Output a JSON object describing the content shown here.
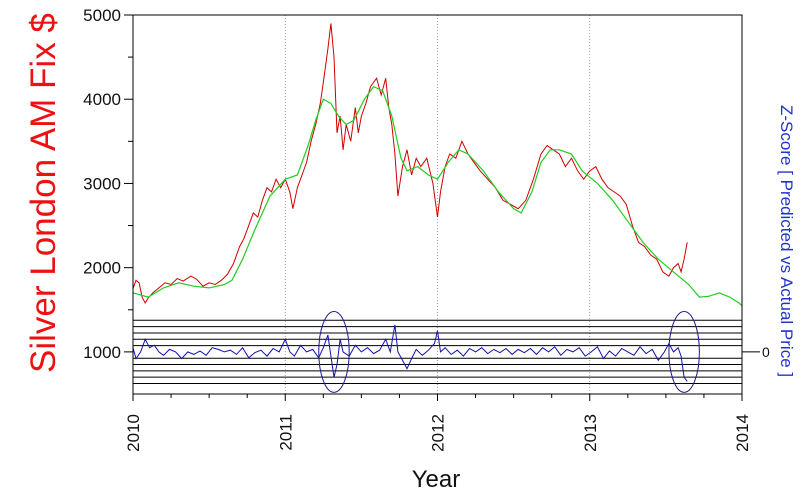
{
  "chart_data": {
    "type": "line",
    "title": "",
    "xlabel": "Year",
    "ylabel": "Silver London AM Fix $",
    "ylabel_right": "Z-Score [ Predicted vs Actual Price ]",
    "xlim": [
      2010,
      2014
    ],
    "ylim": [
      500,
      5000
    ],
    "xticks": [
      2010,
      2011,
      2012,
      2013,
      2014
    ],
    "yticks": [
      1000,
      2000,
      3000,
      4000,
      5000
    ],
    "right_ytick_label": "0",
    "grid": "vertical dotted at years",
    "colors": {
      "actual": "#d00000",
      "predicted": "#22cc22",
      "zscore": "#1111aa",
      "circles": "#1a1a8c",
      "ylabel": "#ee1111",
      "ylabel_right": "#2233cc"
    },
    "series": [
      {
        "key": "actual",
        "points": [
          [
            2010.0,
            1750
          ],
          [
            2010.02,
            1850
          ],
          [
            2010.04,
            1820
          ],
          [
            2010.06,
            1650
          ],
          [
            2010.08,
            1580
          ],
          [
            2010.1,
            1640
          ],
          [
            2010.13,
            1700
          ],
          [
            2010.17,
            1760
          ],
          [
            2010.21,
            1820
          ],
          [
            2010.25,
            1800
          ],
          [
            2010.29,
            1870
          ],
          [
            2010.33,
            1840
          ],
          [
            2010.38,
            1900
          ],
          [
            2010.42,
            1860
          ],
          [
            2010.46,
            1780
          ],
          [
            2010.5,
            1820
          ],
          [
            2010.54,
            1800
          ],
          [
            2010.58,
            1850
          ],
          [
            2010.62,
            1920
          ],
          [
            2010.66,
            2050
          ],
          [
            2010.7,
            2250
          ],
          [
            2010.73,
            2350
          ],
          [
            2010.76,
            2500
          ],
          [
            2010.79,
            2650
          ],
          [
            2010.82,
            2600
          ],
          [
            2010.85,
            2800
          ],
          [
            2010.88,
            2950
          ],
          [
            2010.91,
            2900
          ],
          [
            2010.94,
            3050
          ],
          [
            2010.97,
            2950
          ],
          [
            2011.0,
            3050
          ],
          [
            2011.03,
            2900
          ],
          [
            2011.05,
            2700
          ],
          [
            2011.08,
            2950
          ],
          [
            2011.11,
            3100
          ],
          [
            2011.14,
            3250
          ],
          [
            2011.17,
            3500
          ],
          [
            2011.2,
            3700
          ],
          [
            2011.23,
            3950
          ],
          [
            2011.25,
            4200
          ],
          [
            2011.28,
            4600
          ],
          [
            2011.3,
            4900
          ],
          [
            2011.32,
            4500
          ],
          [
            2011.34,
            3600
          ],
          [
            2011.36,
            3800
          ],
          [
            2011.38,
            3400
          ],
          [
            2011.4,
            3700
          ],
          [
            2011.43,
            3500
          ],
          [
            2011.46,
            3900
          ],
          [
            2011.48,
            3600
          ],
          [
            2011.5,
            3800
          ],
          [
            2011.53,
            3950
          ],
          [
            2011.56,
            4150
          ],
          [
            2011.6,
            4250
          ],
          [
            2011.63,
            4050
          ],
          [
            2011.66,
            4250
          ],
          [
            2011.68,
            3900
          ],
          [
            2011.7,
            3700
          ],
          [
            2011.72,
            3350
          ],
          [
            2011.74,
            2850
          ],
          [
            2011.77,
            3200
          ],
          [
            2011.8,
            3400
          ],
          [
            2011.83,
            3100
          ],
          [
            2011.86,
            3300
          ],
          [
            2011.89,
            3200
          ],
          [
            2011.93,
            3300
          ],
          [
            2011.97,
            3000
          ],
          [
            2012.0,
            2600
          ],
          [
            2012.02,
            2900
          ],
          [
            2012.05,
            3200
          ],
          [
            2012.08,
            3350
          ],
          [
            2012.12,
            3300
          ],
          [
            2012.16,
            3500
          ],
          [
            2012.2,
            3350
          ],
          [
            2012.24,
            3250
          ],
          [
            2012.28,
            3150
          ],
          [
            2012.33,
            3050
          ],
          [
            2012.38,
            2950
          ],
          [
            2012.43,
            2800
          ],
          [
            2012.48,
            2750
          ],
          [
            2012.53,
            2700
          ],
          [
            2012.58,
            2800
          ],
          [
            2012.63,
            3050
          ],
          [
            2012.68,
            3350
          ],
          [
            2012.72,
            3450
          ],
          [
            2012.76,
            3400
          ],
          [
            2012.8,
            3350
          ],
          [
            2012.84,
            3200
          ],
          [
            2012.88,
            3300
          ],
          [
            2012.92,
            3150
          ],
          [
            2012.96,
            3050
          ],
          [
            2013.0,
            3150
          ],
          [
            2013.04,
            3200
          ],
          [
            2013.08,
            3050
          ],
          [
            2013.12,
            2950
          ],
          [
            2013.16,
            2900
          ],
          [
            2013.2,
            2850
          ],
          [
            2013.24,
            2750
          ],
          [
            2013.28,
            2500
          ],
          [
            2013.32,
            2300
          ],
          [
            2013.36,
            2250
          ],
          [
            2013.4,
            2150
          ],
          [
            2013.44,
            2100
          ],
          [
            2013.48,
            1950
          ],
          [
            2013.52,
            1900
          ],
          [
            2013.55,
            2000
          ],
          [
            2013.58,
            2050
          ],
          [
            2013.6,
            1950
          ],
          [
            2013.62,
            2100
          ],
          [
            2013.64,
            2300
          ]
        ]
      },
      {
        "key": "predicted",
        "points": [
          [
            2010.0,
            1700
          ],
          [
            2010.1,
            1650
          ],
          [
            2010.2,
            1760
          ],
          [
            2010.3,
            1820
          ],
          [
            2010.4,
            1780
          ],
          [
            2010.5,
            1760
          ],
          [
            2010.6,
            1800
          ],
          [
            2010.65,
            1850
          ],
          [
            2010.72,
            2100
          ],
          [
            2010.8,
            2450
          ],
          [
            2010.9,
            2850
          ],
          [
            2011.0,
            3050
          ],
          [
            2011.08,
            3100
          ],
          [
            2011.15,
            3450
          ],
          [
            2011.2,
            3750
          ],
          [
            2011.25,
            4000
          ],
          [
            2011.3,
            3950
          ],
          [
            2011.35,
            3800
          ],
          [
            2011.4,
            3700
          ],
          [
            2011.45,
            3750
          ],
          [
            2011.52,
            4000
          ],
          [
            2011.58,
            4150
          ],
          [
            2011.64,
            4100
          ],
          [
            2011.7,
            3800
          ],
          [
            2011.76,
            3300
          ],
          [
            2011.8,
            3150
          ],
          [
            2011.87,
            3200
          ],
          [
            2011.94,
            3100
          ],
          [
            2012.0,
            3050
          ],
          [
            2012.07,
            3250
          ],
          [
            2012.14,
            3400
          ],
          [
            2012.2,
            3350
          ],
          [
            2012.3,
            3150
          ],
          [
            2012.4,
            2900
          ],
          [
            2012.5,
            2700
          ],
          [
            2012.55,
            2650
          ],
          [
            2012.62,
            2900
          ],
          [
            2012.68,
            3250
          ],
          [
            2012.74,
            3400
          ],
          [
            2012.8,
            3400
          ],
          [
            2012.88,
            3350
          ],
          [
            2012.95,
            3150
          ],
          [
            2013.05,
            3000
          ],
          [
            2013.15,
            2800
          ],
          [
            2013.25,
            2550
          ],
          [
            2013.35,
            2300
          ],
          [
            2013.45,
            2100
          ],
          [
            2013.55,
            1950
          ],
          [
            2013.65,
            1800
          ],
          [
            2013.72,
            1650
          ],
          [
            2013.78,
            1660
          ],
          [
            2013.85,
            1700
          ],
          [
            2013.92,
            1650
          ],
          [
            2013.98,
            1580
          ],
          [
            2014.0,
            1550
          ]
        ]
      },
      {
        "key": "zscore",
        "baseline": 1000,
        "points": [
          [
            2010.0,
            1050
          ],
          [
            2010.02,
            920
          ],
          [
            2010.05,
            1000
          ],
          [
            2010.08,
            1150
          ],
          [
            2010.11,
            1050
          ],
          [
            2010.14,
            1080
          ],
          [
            2010.17,
            1000
          ],
          [
            2010.2,
            960
          ],
          [
            2010.24,
            1030
          ],
          [
            2010.28,
            1000
          ],
          [
            2010.32,
            920
          ],
          [
            2010.36,
            1000
          ],
          [
            2010.4,
            970
          ],
          [
            2010.44,
            1010
          ],
          [
            2010.48,
            960
          ],
          [
            2010.52,
            1050
          ],
          [
            2010.56,
            1030
          ],
          [
            2010.6,
            1000
          ],
          [
            2010.64,
            1020
          ],
          [
            2010.68,
            970
          ],
          [
            2010.72,
            1050
          ],
          [
            2010.76,
            930
          ],
          [
            2010.8,
            990
          ],
          [
            2010.84,
            1020
          ],
          [
            2010.88,
            950
          ],
          [
            2010.92,
            1040
          ],
          [
            2010.96,
            1000
          ],
          [
            2011.0,
            1150
          ],
          [
            2011.03,
            1000
          ],
          [
            2011.06,
            950
          ],
          [
            2011.1,
            1080
          ],
          [
            2011.14,
            1000
          ],
          [
            2011.18,
            1030
          ],
          [
            2011.22,
            930
          ],
          [
            2011.25,
            1050
          ],
          [
            2011.28,
            1200
          ],
          [
            2011.3,
            950
          ],
          [
            2011.32,
            700
          ],
          [
            2011.34,
            850
          ],
          [
            2011.36,
            1150
          ],
          [
            2011.38,
            1000
          ],
          [
            2011.42,
            950
          ],
          [
            2011.46,
            1080
          ],
          [
            2011.5,
            1000
          ],
          [
            2011.54,
            1050
          ],
          [
            2011.58,
            980
          ],
          [
            2011.62,
            1020
          ],
          [
            2011.66,
            1150
          ],
          [
            2011.69,
            1000
          ],
          [
            2011.72,
            1320
          ],
          [
            2011.74,
            1000
          ],
          [
            2011.77,
            900
          ],
          [
            2011.8,
            800
          ],
          [
            2011.83,
            920
          ],
          [
            2011.86,
            1030
          ],
          [
            2011.9,
            960
          ],
          [
            2011.94,
            1020
          ],
          [
            2011.98,
            1100
          ],
          [
            2012.0,
            1250
          ],
          [
            2012.02,
            1000
          ],
          [
            2012.05,
            1050
          ],
          [
            2012.09,
            970
          ],
          [
            2012.13,
            1020
          ],
          [
            2012.17,
            950
          ],
          [
            2012.21,
            1040
          ],
          [
            2012.25,
            1000
          ],
          [
            2012.29,
            1050
          ],
          [
            2012.33,
            980
          ],
          [
            2012.37,
            1030
          ],
          [
            2012.41,
            990
          ],
          [
            2012.45,
            1040
          ],
          [
            2012.49,
            970
          ],
          [
            2012.53,
            1030
          ],
          [
            2012.57,
            990
          ],
          [
            2012.61,
            1040
          ],
          [
            2012.65,
            970
          ],
          [
            2012.69,
            1050
          ],
          [
            2012.73,
            1000
          ],
          [
            2012.77,
            1060
          ],
          [
            2012.81,
            960
          ],
          [
            2012.85,
            1030
          ],
          [
            2012.89,
            1000
          ],
          [
            2012.93,
            1050
          ],
          [
            2012.97,
            950
          ],
          [
            2013.01,
            1000
          ],
          [
            2013.05,
            1060
          ],
          [
            2013.09,
            920
          ],
          [
            2013.13,
            1010
          ],
          [
            2013.17,
            950
          ],
          [
            2013.21,
            1040
          ],
          [
            2013.25,
            1000
          ],
          [
            2013.29,
            960
          ],
          [
            2013.33,
            1060
          ],
          [
            2013.37,
            980
          ],
          [
            2013.41,
            1030
          ],
          [
            2013.45,
            900
          ],
          [
            2013.49,
            1000
          ],
          [
            2013.52,
            1100
          ],
          [
            2013.55,
            1000
          ],
          [
            2013.58,
            1050
          ],
          [
            2013.6,
            950
          ],
          [
            2013.62,
            700
          ],
          [
            2013.64,
            650
          ]
        ]
      }
    ],
    "zscore_bands": [
      1375,
      1300,
      1225,
      1150,
      1075,
      925,
      850,
      775,
      700,
      625
    ],
    "annotations": [
      {
        "type": "ellipse",
        "x": 2011.32,
        "y": 1000,
        "rx": 0.1,
        "ry": 480
      },
      {
        "type": "ellipse",
        "x": 2013.62,
        "y": 1000,
        "rx": 0.1,
        "ry": 480
      }
    ]
  }
}
